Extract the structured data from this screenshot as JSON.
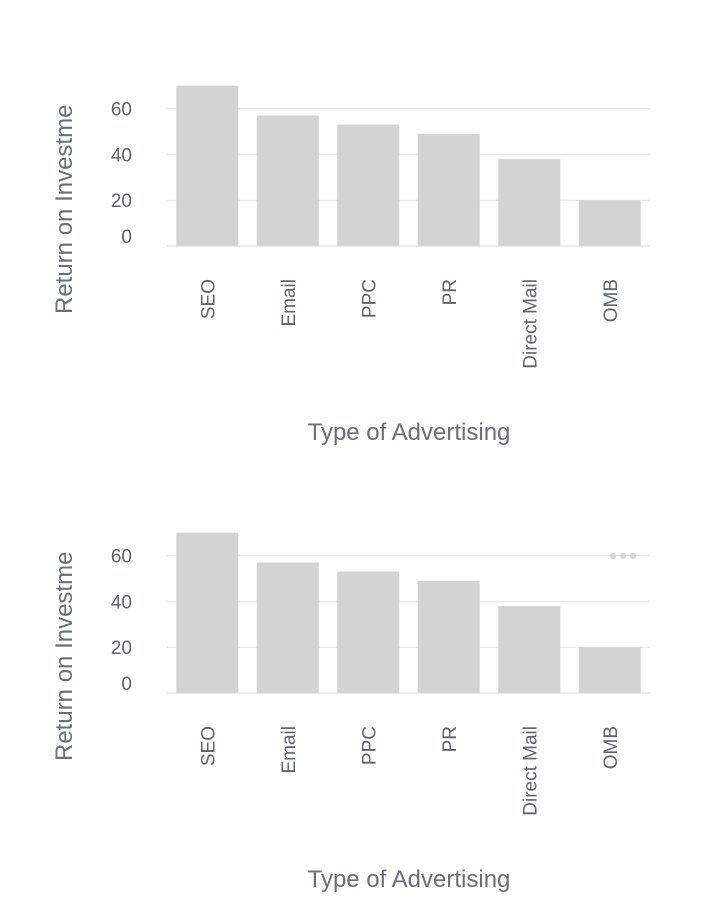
{
  "chart_data": [
    {
      "type": "bar",
      "categories": [
        "SEO",
        "Email",
        "PPC",
        "PR",
        "Direct Mail",
        "OMB"
      ],
      "values": [
        70,
        57,
        53,
        49,
        38,
        20
      ],
      "title": "",
      "xlabel": "Type of Advertising",
      "ylabel": "Return on Investme",
      "yticks": [
        0,
        20,
        40,
        60
      ],
      "ylim": [
        0,
        72
      ],
      "grid": true,
      "bar_color": "#d3d3d3",
      "menu_icon": false
    },
    {
      "type": "bar",
      "categories": [
        "SEO",
        "Email",
        "PPC",
        "PR",
        "Direct Mail",
        "OMB"
      ],
      "values": [
        70,
        57,
        53,
        49,
        38,
        20
      ],
      "title": "",
      "xlabel": "Type of Advertising",
      "ylabel": "Return on Investme",
      "yticks": [
        0,
        20,
        40,
        60
      ],
      "ylim": [
        0,
        72
      ],
      "grid": true,
      "bar_color": "#d3d3d3",
      "menu_icon": true,
      "menu_icon_name": "more-horizontal-icon"
    }
  ]
}
